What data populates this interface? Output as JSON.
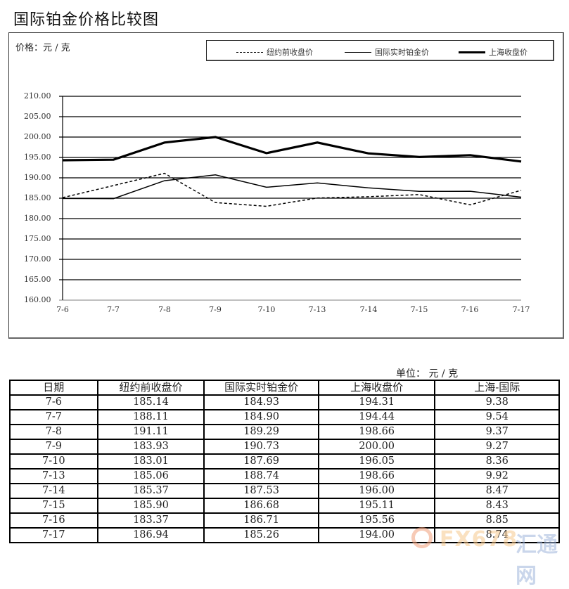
{
  "title": "国际铂金价格比较图",
  "chart": {
    "y_unit_label": "价格：元 / 克",
    "legend": [
      {
        "label": "纽约前收盘价",
        "style": "dashed"
      },
      {
        "label": "国际实时铂金价",
        "style": "thin-solid"
      },
      {
        "label": "上海收盘价",
        "style": "thick-solid"
      }
    ],
    "y_ticks": [
      "210.00",
      "205.00",
      "200.00",
      "195.00",
      "190.00",
      "185.00",
      "180.00",
      "175.00",
      "170.00",
      "165.00",
      "160.00"
    ],
    "x_ticks": [
      "7-6",
      "7-7",
      "7-8",
      "7-9",
      "7-10",
      "7-13",
      "7-14",
      "7-15",
      "7-16",
      "7-17"
    ]
  },
  "chart_data": {
    "type": "line",
    "title": "国际铂金价格比较图",
    "xlabel": "",
    "ylabel": "价格：元 / 克",
    "ylim": [
      160,
      210
    ],
    "y_tick_step": 5,
    "grid": true,
    "legend_position": "top-right",
    "categories": [
      "7-6",
      "7-7",
      "7-8",
      "7-9",
      "7-10",
      "7-13",
      "7-14",
      "7-15",
      "7-16",
      "7-17"
    ],
    "series": [
      {
        "name": "纽约前收盘价",
        "line_style": "dashed",
        "values": [
          185.14,
          188.11,
          191.11,
          183.93,
          183.01,
          185.06,
          185.37,
          185.9,
          183.37,
          186.94
        ]
      },
      {
        "name": "国际实时铂金价",
        "line_style": "solid-thin",
        "values": [
          184.93,
          184.9,
          189.29,
          190.73,
          187.69,
          188.74,
          187.53,
          186.68,
          186.71,
          185.26
        ]
      },
      {
        "name": "上海收盘价",
        "line_style": "solid-thick",
        "values": [
          194.31,
          194.44,
          198.66,
          200.0,
          196.05,
          198.66,
          196.0,
          195.11,
          195.56,
          194.0
        ]
      }
    ]
  },
  "table": {
    "unit": "单位：  元 / 克",
    "headers": [
      "日期",
      "纽约前收盘价",
      "国际实时铂金价",
      "上海收盘价",
      "上海-国际"
    ],
    "rows": [
      [
        "7-6",
        "185.14",
        "184.93",
        "194.31",
        "9.38"
      ],
      [
        "7-7",
        "188.11",
        "184.90",
        "194.44",
        "9.54"
      ],
      [
        "7-8",
        "191.11",
        "189.29",
        "198.66",
        "9.37"
      ],
      [
        "7-9",
        "183.93",
        "190.73",
        "200.00",
        "9.27"
      ],
      [
        "7-10",
        "183.01",
        "187.69",
        "196.05",
        "8.36"
      ],
      [
        "7-13",
        "185.06",
        "188.74",
        "198.66",
        "9.92"
      ],
      [
        "7-14",
        "185.37",
        "187.53",
        "196.00",
        "8.47"
      ],
      [
        "7-15",
        "185.90",
        "186.68",
        "195.11",
        "8.43"
      ],
      [
        "7-16",
        "183.37",
        "186.71",
        "195.56",
        "8.85"
      ],
      [
        "7-17",
        "186.94",
        "185.26",
        "194.00",
        "8.74"
      ]
    ]
  },
  "watermark": {
    "brand": "FX678",
    "cn": "汇通网"
  }
}
